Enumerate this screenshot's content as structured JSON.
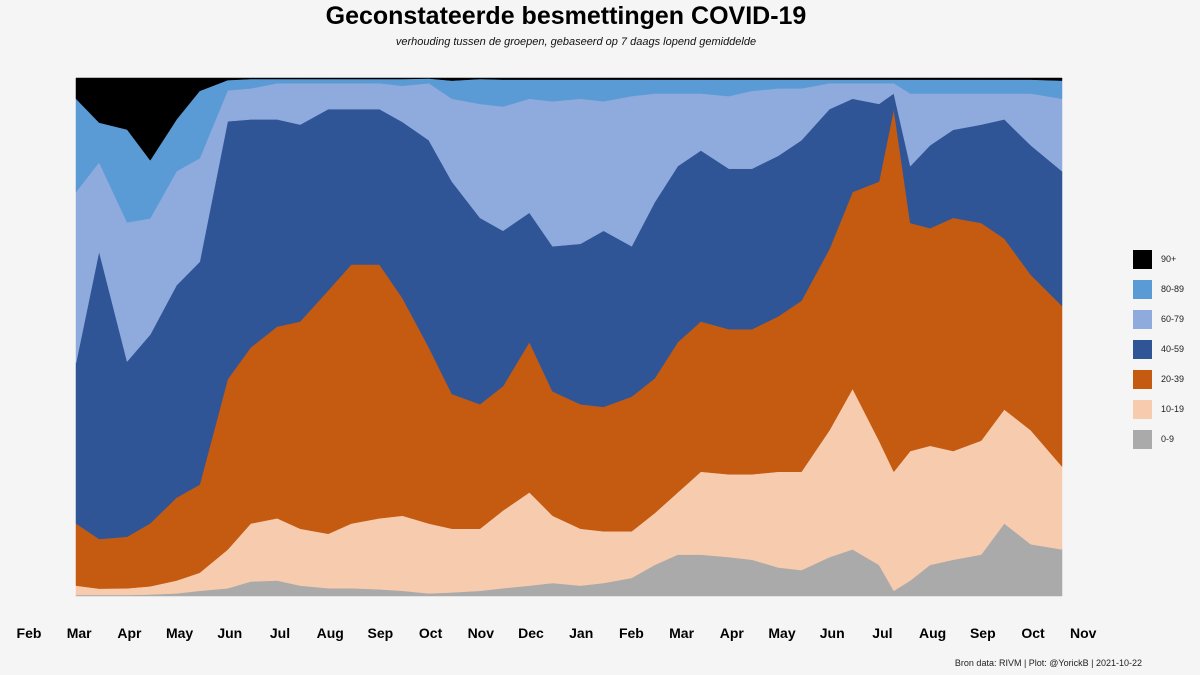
{
  "chart_data": {
    "type": "area",
    "stacked": true,
    "normalized": true,
    "title": "Geconstateerde besmettingen COVID-19",
    "subtitle": "verhouding tussen de groepen, gebaseerd op 7 daags lopend gemiddelde",
    "caption": "Bron data: RIVM  | Plot: @YorickB |  2021-10-22",
    "xlabel": "",
    "ylabel": "",
    "grid": false,
    "legend_position": "right",
    "x_ticks": [
      "Feb",
      "Mar",
      "Apr",
      "May",
      "Jun",
      "Jul",
      "Aug",
      "Sep",
      "Oct",
      "Nov",
      "Dec",
      "Jan",
      "Feb",
      "Mar",
      "Apr",
      "May",
      "Jun",
      "Jul",
      "Aug",
      "Sep",
      "Oct",
      "Nov"
    ],
    "x": [
      "2020-03-01",
      "2020-03-15",
      "2020-04-01",
      "2020-04-15",
      "2020-05-01",
      "2020-05-15",
      "2020-06-01",
      "2020-06-15",
      "2020-07-01",
      "2020-07-15",
      "2020-08-01",
      "2020-08-15",
      "2020-09-01",
      "2020-09-15",
      "2020-10-01",
      "2020-10-15",
      "2020-11-01",
      "2020-11-15",
      "2020-12-01",
      "2020-12-15",
      "2021-01-01",
      "2021-01-15",
      "2021-02-01",
      "2021-02-15",
      "2021-03-01",
      "2021-03-15",
      "2021-04-01",
      "2021-04-15",
      "2021-05-01",
      "2021-05-15",
      "2021-06-01",
      "2021-06-15",
      "2021-07-01",
      "2021-07-10",
      "2021-07-20",
      "2021-08-01",
      "2021-08-15",
      "2021-09-01",
      "2021-09-15",
      "2021-10-01",
      "2021-10-20"
    ],
    "series": [
      {
        "name": "0-9",
        "color": "#aaaaaa",
        "values": [
          0.2,
          0.2,
          0.2,
          0.3,
          0.5,
          1.0,
          1.5,
          2.8,
          3.0,
          2.0,
          1.5,
          1.5,
          1.3,
          1.0,
          0.5,
          0.7,
          1.0,
          1.5,
          2.0,
          2.5,
          2.0,
          2.5,
          3.5,
          6.0,
          8.0,
          8.0,
          7.5,
          7.0,
          5.5,
          5.0,
          7.5,
          9.0,
          6.0,
          1.0,
          3.0,
          6.0,
          7.0,
          8.0,
          14.0,
          10.0,
          9.0
        ]
      },
      {
        "name": "10-19",
        "color": "#f7cbad",
        "values": [
          1.8,
          1.3,
          1.3,
          1.7,
          2.5,
          3.5,
          7.5,
          11.2,
          12.0,
          11.0,
          10.5,
          12.5,
          13.7,
          14.5,
          13.5,
          12.3,
          12.0,
          15.0,
          18.0,
          13.0,
          11.0,
          10.0,
          9.0,
          10.0,
          12.0,
          16.0,
          16.0,
          16.5,
          18.5,
          19.0,
          24.5,
          31.0,
          24.0,
          23.0,
          25.0,
          23.0,
          21.0,
          22.0,
          22.0,
          22.0,
          16.0
        ]
      },
      {
        "name": "20-39",
        "color": "#c55a11",
        "values": [
          12,
          10,
          10,
          13,
          16,
          17,
          33,
          34,
          37,
          40,
          47,
          50,
          49,
          42,
          34,
          26,
          24,
          24,
          29,
          24,
          24,
          24,
          26,
          26,
          29,
          29,
          28,
          28,
          30,
          33,
          35,
          38,
          50,
          70,
          44,
          42,
          45,
          42,
          33,
          30,
          31
        ]
      },
      {
        "name": "40-59",
        "color": "#2f5597",
        "values": [
          31,
          58,
          34,
          39,
          41,
          43,
          50,
          44,
          40,
          38,
          35,
          30,
          30,
          34,
          40,
          41,
          36,
          30,
          25,
          28,
          31,
          34,
          29,
          34,
          34,
          33,
          31,
          31,
          31,
          31,
          27,
          18,
          15,
          3,
          11,
          16,
          17,
          19,
          23,
          25,
          26
        ]
      },
      {
        "name": "60-79",
        "color": "#8faadc",
        "values": [
          33,
          18,
          27,
          24,
          22,
          20,
          6,
          6,
          7,
          8,
          5,
          5,
          5,
          7,
          11,
          16,
          22,
          24,
          22,
          28,
          28,
          25,
          29,
          21,
          14,
          11,
          14,
          15,
          13,
          10,
          5,
          3,
          4,
          2,
          14,
          10,
          7,
          6,
          5,
          10,
          14
        ]
      },
      {
        "name": "80-89",
        "color": "#5b9bd5",
        "values": [
          18,
          8,
          18,
          12,
          10,
          13,
          2,
          1.8,
          0.8,
          0.8,
          0.8,
          0.8,
          0.8,
          1.3,
          0.9,
          3.5,
          4.8,
          5.2,
          3.7,
          4.2,
          3.7,
          4.2,
          3.2,
          2.7,
          2.7,
          2.7,
          3.2,
          2.2,
          1.7,
          1.7,
          0.7,
          0.7,
          0.7,
          0.7,
          2.7,
          2.7,
          2.7,
          2.7,
          2.7,
          2.7,
          3.5
        ]
      },
      {
        "name": "90+",
        "color": "#000000",
        "values": [
          4,
          9,
          10,
          17,
          8,
          2.5,
          0.4,
          0.2,
          0.2,
          0.2,
          0.2,
          0.2,
          0.2,
          0.2,
          0.1,
          0.5,
          0.2,
          0.3,
          0.3,
          0.3,
          0.3,
          0.3,
          0.3,
          0.3,
          0.3,
          0.3,
          0.3,
          0.3,
          0.3,
          0.3,
          0.3,
          0.3,
          0.3,
          0.3,
          0.3,
          0.3,
          0.3,
          0.3,
          0.3,
          0.3,
          0.5
        ]
      }
    ]
  }
}
